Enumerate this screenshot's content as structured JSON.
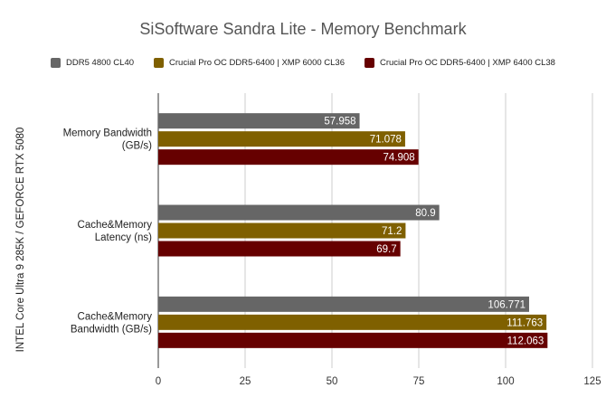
{
  "chart_data": {
    "type": "bar",
    "orientation": "horizontal",
    "title": "SiSoftware Sandra Lite - Memory Benchmark",
    "ylabel": "INTEL Core Ultra 9 285K / GEFORCE RTX 5080",
    "xlabel": "",
    "categories": [
      [
        "Memory Bandwidth",
        "(GB/s)"
      ],
      [
        "Cache&Memory",
        "Latency (ns)"
      ],
      [
        "Cache&Memory",
        "Bandwidth (GB/s)"
      ]
    ],
    "series": [
      {
        "name": "DDR5 4800 CL40",
        "color": "#666666",
        "values": [
          57.958,
          80.9,
          106.771
        ],
        "labels": [
          "57.958",
          "80.9",
          "106.771"
        ]
      },
      {
        "name": "Crucial Pro OC DDR5-6400 | XMP 6000 CL36",
        "color": "#7f6000",
        "values": [
          71.078,
          71.2,
          111.763
        ],
        "labels": [
          "71.078",
          "71.2",
          "111.763"
        ]
      },
      {
        "name": "Crucial Pro OC DDR5-6400 | XMP 6400 CL38",
        "color": "#660000",
        "values": [
          74.908,
          69.7,
          112.063
        ],
        "labels": [
          "74.908",
          "69.7",
          "112.063"
        ]
      }
    ],
    "xlim": [
      0,
      125
    ],
    "xticks": [
      "0",
      "25",
      "50",
      "75",
      "100",
      "125"
    ],
    "legend_position": "top",
    "grid": true
  }
}
